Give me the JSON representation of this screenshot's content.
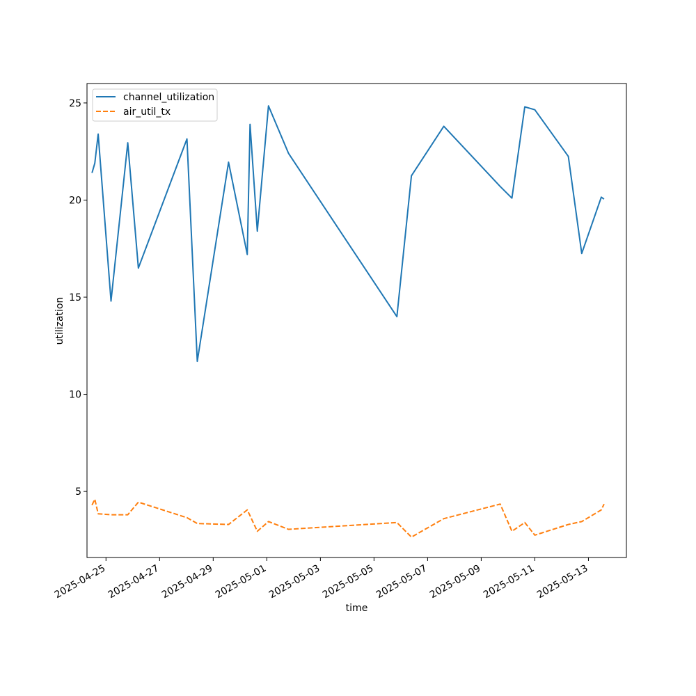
{
  "chart_data": {
    "type": "line",
    "title": "",
    "xlabel": "time",
    "ylabel": "utilization",
    "x_type": "date",
    "xlim": [
      "2024-04-24T07:00:00",
      "2025-05-14T10:00:00"
    ],
    "ylim": [
      1.6,
      26.0
    ],
    "grid": false,
    "legend_position": "upper-left",
    "x_ticks": [
      "2025-04-25",
      "2025-04-27",
      "2025-04-29",
      "2025-05-01",
      "2025-05-03",
      "2025-05-05",
      "2025-05-07",
      "2025-05-09",
      "2025-05-11",
      "2025-05-13"
    ],
    "y_ticks": [
      5,
      10,
      15,
      20,
      25
    ],
    "x": [
      "2025-04-24T11:30:00",
      "2025-04-24T14:00:00",
      "2025-04-24T17:00:00",
      "2025-04-25T04:30:00",
      "2025-04-25T19:30:00",
      "2025-04-26T05:00:00",
      "2025-04-28T00:30:00",
      "2025-04-28T09:45:00",
      "2025-04-29T13:45:00",
      "2025-04-30T06:30:00",
      "2025-04-30T09:00:00",
      "2025-04-30T15:30:00",
      "2025-05-01T01:30:00",
      "2025-05-01T19:30:00",
      "2025-05-05T20:30:00",
      "2025-05-06T09:30:00",
      "2025-05-07T14:30:00",
      "2025-05-09T17:00:00",
      "2025-05-10T03:30:00",
      "2025-05-10T15:00:00",
      "2025-05-11T00:00:00",
      "2025-05-12T06:00:00",
      "2025-05-12T18:00:00",
      "2025-05-13T11:30:00",
      "2025-05-13T14:00:00"
    ],
    "series": [
      {
        "name": "channel_utilization",
        "color": "#1f77b4",
        "dash": "solid",
        "values": [
          21.4,
          21.9,
          23.4,
          14.8,
          22.95,
          16.5,
          23.15,
          11.7,
          21.95,
          17.2,
          23.9,
          18.4,
          24.85,
          22.4,
          14.0,
          21.25,
          23.8,
          20.7,
          20.1,
          24.8,
          24.65,
          22.25,
          17.25,
          20.15,
          20.05
        ]
      },
      {
        "name": "air_util_tx",
        "color": "#ff7f0e",
        "dash": "dashed",
        "values": [
          4.3,
          4.6,
          3.85,
          3.8,
          3.8,
          4.45,
          3.65,
          3.35,
          3.3,
          4.05,
          3.75,
          2.95,
          3.45,
          3.05,
          3.4,
          2.65,
          3.6,
          4.35,
          2.95,
          3.4,
          2.75,
          3.3,
          3.45,
          4.05,
          4.35
        ]
      }
    ]
  }
}
